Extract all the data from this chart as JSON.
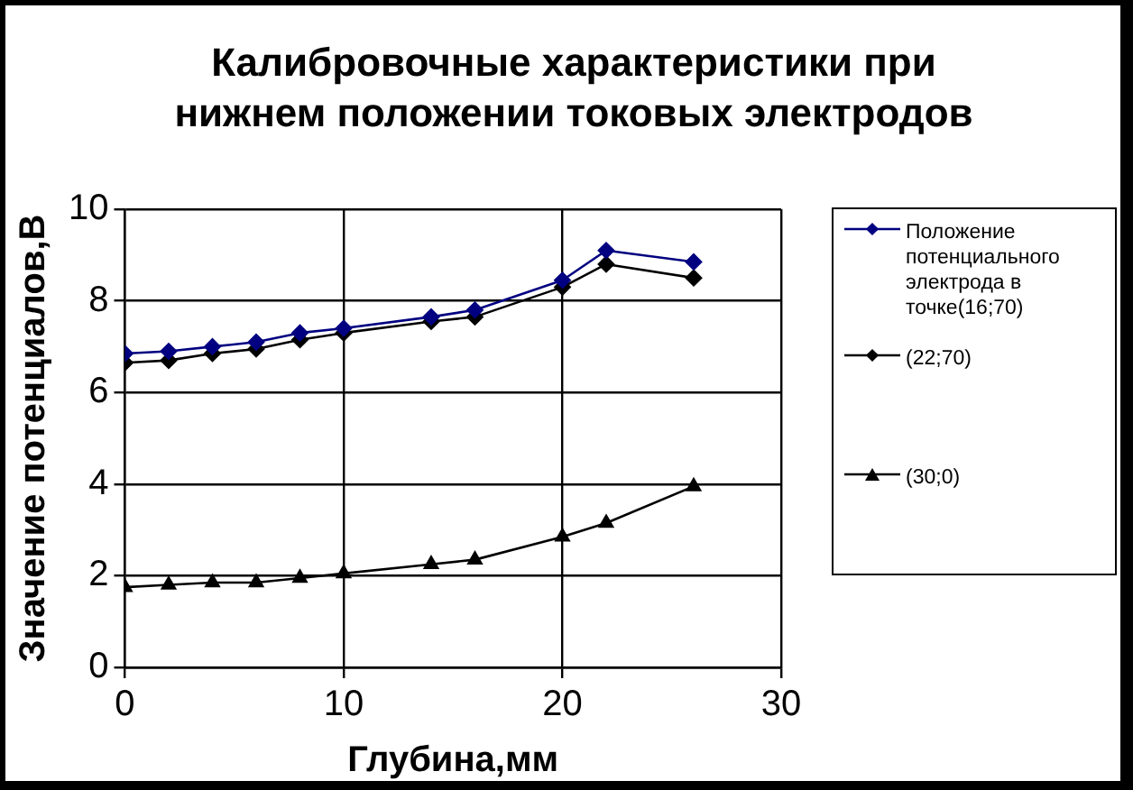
{
  "chart_data": {
    "type": "line",
    "title": "Калибровочные характеристики при нижнем положении токовых электродов",
    "xlabel": "Глубина,мм",
    "ylabel": "Значение потенциалов,В",
    "x": [
      0,
      2,
      4,
      6,
      8,
      10,
      14,
      16,
      20,
      22,
      26
    ],
    "series": [
      {
        "name": "Положение потенциального электрода в точке(16;70)",
        "color": "#000080",
        "marker": "diamond",
        "values": [
          6.85,
          6.9,
          7.0,
          7.1,
          7.3,
          7.4,
          7.65,
          7.8,
          8.45,
          9.1,
          8.85
        ]
      },
      {
        "name": "(22;70)",
        "color": "#000000",
        "marker": "diamond",
        "values": [
          6.65,
          6.7,
          6.85,
          6.95,
          7.15,
          7.3,
          7.55,
          7.65,
          8.3,
          8.8,
          8.5
        ]
      },
      {
        "name": "(30;0)",
        "color": "#000000",
        "marker": "triangle",
        "values": [
          1.75,
          1.8,
          1.85,
          1.85,
          1.95,
          2.05,
          2.25,
          2.35,
          2.85,
          3.15,
          3.95
        ]
      }
    ],
    "xlim": [
      0,
      30
    ],
    "xticks": [
      0,
      10,
      20,
      30
    ],
    "ylim": [
      0,
      10
    ],
    "yticks": [
      0,
      2,
      4,
      6,
      8,
      10
    ],
    "grid": true,
    "legend": "right"
  }
}
